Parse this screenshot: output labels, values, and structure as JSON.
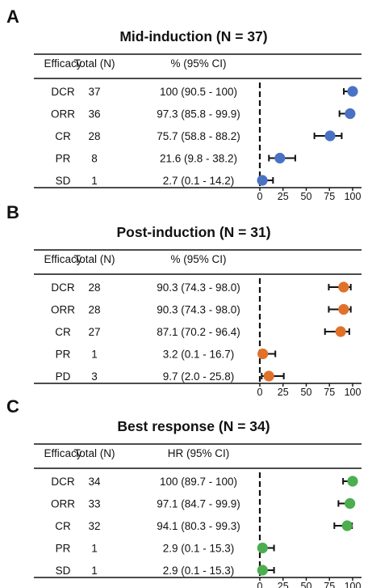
{
  "chart_data": [
    {
      "type": "forest",
      "panel_label": "A",
      "title": "Mid-induction (N = 37)",
      "headers": [
        "Efficacy",
        "Total (N)",
        "% (95% CI)"
      ],
      "marker_color": "#4a72c4",
      "xlim": [
        0,
        100
      ],
      "xticks": [
        0,
        25,
        50,
        75,
        100
      ],
      "reference_line": 0,
      "rows": [
        {
          "label": "DCR",
          "n": "37",
          "ci_text": "100 (90.5 - 100)",
          "value": 100,
          "lower": 90.5,
          "upper": 100
        },
        {
          "label": "ORR",
          "n": "36",
          "ci_text": "97.3 (85.8 - 99.9)",
          "value": 97.3,
          "lower": 85.8,
          "upper": 99.9
        },
        {
          "label": "CR",
          "n": "28",
          "ci_text": "75.7 (58.8 - 88.2)",
          "value": 75.7,
          "lower": 58.8,
          "upper": 88.2
        },
        {
          "label": "PR",
          "n": "8",
          "ci_text": "21.6 (9.8 - 38.2)",
          "value": 21.6,
          "lower": 9.8,
          "upper": 38.2
        },
        {
          "label": "SD",
          "n": "1",
          "ci_text": "2.7 (0.1 - 14.2)",
          "value": 2.7,
          "lower": 0.1,
          "upper": 14.2
        }
      ]
    },
    {
      "type": "forest",
      "panel_label": "B",
      "title": "Post-induction (N = 31)",
      "headers": [
        "Efficacy",
        "Total (N)",
        "% (95% CI)"
      ],
      "marker_color": "#e0712a",
      "xlim": [
        0,
        100
      ],
      "xticks": [
        0,
        25,
        50,
        75,
        100
      ],
      "reference_line": 0,
      "rows": [
        {
          "label": "DCR",
          "n": "28",
          "ci_text": "90.3 (74.3 - 98.0)",
          "value": 90.3,
          "lower": 74.3,
          "upper": 98.0
        },
        {
          "label": "ORR",
          "n": "28",
          "ci_text": "90.3 (74.3 - 98.0)",
          "value": 90.3,
          "lower": 74.3,
          "upper": 98.0
        },
        {
          "label": "CR",
          "n": "27",
          "ci_text": "87.1 (70.2 - 96.4)",
          "value": 87.1,
          "lower": 70.2,
          "upper": 96.4
        },
        {
          "label": "PR",
          "n": "1",
          "ci_text": "3.2 (0.1 - 16.7)",
          "value": 3.2,
          "lower": 0.1,
          "upper": 16.7
        },
        {
          "label": "PD",
          "n": "3",
          "ci_text": "9.7 (2.0 - 25.8)",
          "value": 9.7,
          "lower": 2.0,
          "upper": 25.8
        }
      ]
    },
    {
      "type": "forest",
      "panel_label": "C",
      "title": "Best response (N = 34)",
      "headers": [
        "Efficacy",
        "Total (N)",
        "HR (95% CI)"
      ],
      "marker_color": "#4cae4f",
      "xlim": [
        0,
        100
      ],
      "xticks": [
        0,
        25,
        50,
        75,
        100
      ],
      "reference_line": 0,
      "rows": [
        {
          "label": "DCR",
          "n": "34",
          "ci_text": "100 (89.7 - 100)",
          "value": 100,
          "lower": 89.7,
          "upper": 100
        },
        {
          "label": "ORR",
          "n": "33",
          "ci_text": "97.1 (84.7 - 99.9)",
          "value": 97.1,
          "lower": 84.7,
          "upper": 99.9
        },
        {
          "label": "CR",
          "n": "32",
          "ci_text": "94.1 (80.3 - 99.3)",
          "value": 94.1,
          "lower": 80.3,
          "upper": 99.3
        },
        {
          "label": "PR",
          "n": "1",
          "ci_text": "2.9 (0.1 - 15.3)",
          "value": 2.9,
          "lower": 0.1,
          "upper": 15.3
        },
        {
          "label": "SD",
          "n": "1",
          "ci_text": "2.9 (0.1 - 15.3)",
          "value": 2.9,
          "lower": 0.1,
          "upper": 15.3
        }
      ]
    }
  ]
}
